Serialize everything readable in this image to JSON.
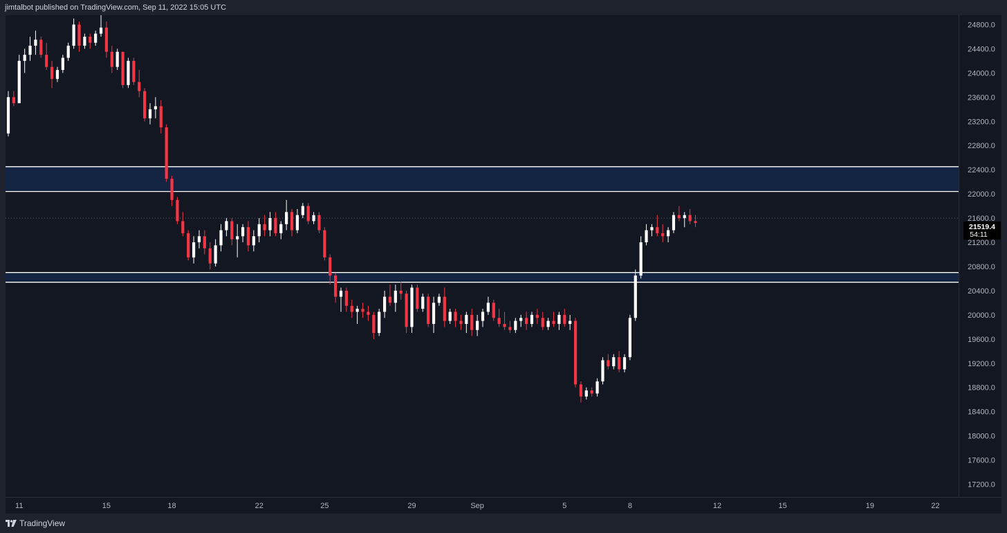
{
  "header": {
    "publish_text": "jimtalbot published on TradingView.com, Sep 11, 2022 15:05 UTC"
  },
  "footer": {
    "brand": "TradingView",
    "logo_icon": "tradingview-logo-icon"
  },
  "colors": {
    "background": "#131722",
    "up_candle": "#ffffff",
    "down_candle": "#f23645",
    "zone_fill": "#142443",
    "zone_border": "#ffffff",
    "price_label_bg": "#000000"
  },
  "chart_data": {
    "type": "candlestick",
    "title": "",
    "ylim": [
      17000,
      25200
    ],
    "y_ticks": [
      "17200.0",
      "17600.0",
      "18000.0",
      "18400.0",
      "18800.0",
      "19200.0",
      "19600.0",
      "20000.0",
      "20400.0",
      "20800.0",
      "21200.0",
      "21600.0",
      "22000.0",
      "22400.0",
      "22800.0",
      "23200.0",
      "23600.0",
      "24000.0",
      "24400.0",
      "24800.0"
    ],
    "x_ticks": [
      {
        "label": "11",
        "index": 2
      },
      {
        "label": "15",
        "index": 18
      },
      {
        "label": "18",
        "index": 30
      },
      {
        "label": "22",
        "index": 46
      },
      {
        "label": "25",
        "index": 58
      },
      {
        "label": "29",
        "index": 74
      },
      {
        "label": "Sep",
        "index": 86
      },
      {
        "label": "5",
        "index": 102
      },
      {
        "label": "8",
        "index": 114
      },
      {
        "label": "12",
        "index": 130
      },
      {
        "label": "15",
        "index": 142
      },
      {
        "label": "19",
        "index": 158
      },
      {
        "label": "22",
        "index": 170
      }
    ],
    "index_range": [
      0,
      174
    ],
    "current_price": {
      "value": 21519.4,
      "label": "21519.4",
      "countdown": "54:11"
    },
    "last_price_line": 21600,
    "zones": [
      {
        "name": "resistance-zone",
        "low": 22040,
        "high": 22450
      },
      {
        "name": "support-zone",
        "low": 20540,
        "high": 20700
      }
    ],
    "candles": [
      [
        23000,
        23700,
        22950,
        23600
      ],
      [
        23600,
        23700,
        23450,
        23500
      ],
      [
        23500,
        24300,
        23500,
        24200
      ],
      [
        24200,
        24400,
        24000,
        24300
      ],
      [
        24300,
        24600,
        24200,
        24450
      ],
      [
        24450,
        24700,
        24300,
        24550
      ],
      [
        24550,
        24600,
        24250,
        24300
      ],
      [
        24300,
        24500,
        24050,
        24100
      ],
      [
        24100,
        24200,
        23750,
        23900
      ],
      [
        23900,
        24100,
        23850,
        24050
      ],
      [
        24050,
        24300,
        24000,
        24250
      ],
      [
        24250,
        24500,
        24200,
        24450
      ],
      [
        24450,
        24900,
        24400,
        24800
      ],
      [
        24800,
        24850,
        24350,
        24450
      ],
      [
        24450,
        24650,
        24400,
        24600
      ],
      [
        24600,
        24650,
        24400,
        24500
      ],
      [
        24500,
        24700,
        24450,
        24650
      ],
      [
        24650,
        25000,
        24600,
        24750
      ],
      [
        24750,
        24850,
        24250,
        24350
      ],
      [
        24350,
        24450,
        24000,
        24100
      ],
      [
        24100,
        24400,
        24050,
        24350
      ],
      [
        24350,
        24300,
        23750,
        23800
      ],
      [
        23800,
        24250,
        23750,
        24200
      ],
      [
        24200,
        24250,
        23800,
        23850
      ],
      [
        23850,
        24050,
        23600,
        23700
      ],
      [
        23700,
        23750,
        23200,
        23250
      ],
      [
        23250,
        23500,
        23150,
        23400
      ],
      [
        23400,
        23600,
        23250,
        23450
      ],
      [
        23450,
        23550,
        23000,
        23100
      ],
      [
        23100,
        23150,
        22200,
        22250
      ],
      [
        22250,
        22300,
        21800,
        21900
      ],
      [
        21900,
        21950,
        21500,
        21550
      ],
      [
        21550,
        21700,
        21300,
        21350
      ],
      [
        21350,
        21400,
        20900,
        20950
      ],
      [
        20950,
        21300,
        20850,
        21200
      ],
      [
        21200,
        21400,
        21100,
        21300
      ],
      [
        21300,
        21400,
        21000,
        21100
      ],
      [
        21100,
        21200,
        20750,
        20850
      ],
      [
        20850,
        21250,
        20800,
        21150
      ],
      [
        21150,
        21500,
        21050,
        21400
      ],
      [
        21400,
        21600,
        21300,
        21550
      ],
      [
        21550,
        21600,
        21150,
        21250
      ],
      [
        21250,
        21500,
        20950,
        21300
      ],
      [
        21300,
        21500,
        21200,
        21450
      ],
      [
        21450,
        21550,
        21050,
        21150
      ],
      [
        21150,
        21400,
        21050,
        21300
      ],
      [
        21300,
        21600,
        21200,
        21500
      ],
      [
        21500,
        21650,
        21300,
        21400
      ],
      [
        21400,
        21700,
        21300,
        21600
      ],
      [
        21600,
        21700,
        21300,
        21350
      ],
      [
        21350,
        21550,
        21250,
        21500
      ],
      [
        21500,
        21900,
        21400,
        21700
      ],
      [
        21700,
        21750,
        21300,
        21400
      ],
      [
        21400,
        21750,
        21350,
        21650
      ],
      [
        21650,
        21850,
        21600,
        21800
      ],
      [
        21800,
        21850,
        21500,
        21550
      ],
      [
        21550,
        21700,
        21500,
        21650
      ],
      [
        21650,
        21700,
        21350,
        21400
      ],
      [
        21400,
        21450,
        20900,
        20950
      ],
      [
        20950,
        21000,
        20500,
        20650
      ],
      [
        20650,
        20700,
        20200,
        20300
      ],
      [
        20300,
        20450,
        20050,
        20400
      ],
      [
        20400,
        20450,
        20050,
        20150
      ],
      [
        20150,
        20250,
        19950,
        20050
      ],
      [
        20050,
        20150,
        19850,
        20100
      ],
      [
        20100,
        20200,
        19950,
        20050
      ],
      [
        20050,
        20150,
        19900,
        20000
      ],
      [
        20000,
        20050,
        19600,
        19700
      ],
      [
        19700,
        20100,
        19650,
        20050
      ],
      [
        20050,
        20400,
        19950,
        20300
      ],
      [
        20300,
        20500,
        20150,
        20200
      ],
      [
        20200,
        20500,
        20050,
        20400
      ],
      [
        20400,
        20550,
        20250,
        20350
      ],
      [
        20350,
        20400,
        19700,
        19800
      ],
      [
        19800,
        20500,
        19700,
        20450
      ],
      [
        20450,
        20500,
        20050,
        20100
      ],
      [
        20100,
        20350,
        20050,
        20300
      ],
      [
        20300,
        20350,
        19800,
        19850
      ],
      [
        19850,
        20300,
        19700,
        20200
      ],
      [
        20200,
        20350,
        20150,
        20300
      ],
      [
        20300,
        20450,
        19800,
        19900
      ],
      [
        19900,
        20100,
        19850,
        20050
      ],
      [
        20050,
        20100,
        19800,
        19900
      ],
      [
        19900,
        20000,
        19750,
        19850
      ],
      [
        19850,
        20050,
        19700,
        20000
      ],
      [
        20000,
        20100,
        19650,
        19750
      ],
      [
        19750,
        20000,
        19650,
        19900
      ],
      [
        19900,
        20100,
        19800,
        20050
      ],
      [
        20050,
        20300,
        20000,
        20200
      ],
      [
        20200,
        20250,
        19900,
        19950
      ],
      [
        19950,
        20100,
        19800,
        19850
      ],
      [
        19850,
        20050,
        19750,
        19800
      ],
      [
        19800,
        19900,
        19700,
        19750
      ],
      [
        19750,
        19950,
        19700,
        19900
      ],
      [
        19900,
        20000,
        19800,
        19950
      ],
      [
        19950,
        20050,
        19750,
        19850
      ],
      [
        19850,
        20050,
        19800,
        20000
      ],
      [
        20000,
        20100,
        19850,
        19950
      ],
      [
        19950,
        20050,
        19750,
        19800
      ],
      [
        19800,
        19950,
        19750,
        19900
      ],
      [
        19900,
        20050,
        19800,
        19850
      ],
      [
        19850,
        20050,
        19750,
        20000
      ],
      [
        20000,
        20100,
        19800,
        19850
      ],
      [
        19850,
        20000,
        19750,
        19900
      ],
      [
        19900,
        19950,
        18800,
        18850
      ],
      [
        18850,
        18900,
        18550,
        18650
      ],
      [
        18650,
        18800,
        18600,
        18750
      ],
      [
        18750,
        18800,
        18650,
        18700
      ],
      [
        18700,
        18950,
        18650,
        18900
      ],
      [
        18900,
        19300,
        18850,
        19250
      ],
      [
        19250,
        19350,
        19100,
        19150
      ],
      [
        19150,
        19350,
        19100,
        19300
      ],
      [
        19300,
        19400,
        19050,
        19100
      ],
      [
        19100,
        19350,
        19050,
        19300
      ],
      [
        19300,
        20000,
        19250,
        19950
      ],
      [
        19950,
        20750,
        19900,
        20650
      ],
      [
        20650,
        21300,
        20600,
        21200
      ],
      [
        21200,
        21500,
        21150,
        21400
      ],
      [
        21400,
        21500,
        21300,
        21450
      ],
      [
        21450,
        21650,
        21300,
        21350
      ],
      [
        21350,
        21500,
        21200,
        21300
      ],
      [
        21300,
        21450,
        21200,
        21400
      ],
      [
        21400,
        21700,
        21350,
        21650
      ],
      [
        21650,
        21800,
        21550,
        21600
      ],
      [
        21600,
        21700,
        21450,
        21650
      ],
      [
        21650,
        21750,
        21500,
        21550
      ],
      [
        21550,
        21650,
        21450,
        21519.4
      ]
    ]
  }
}
